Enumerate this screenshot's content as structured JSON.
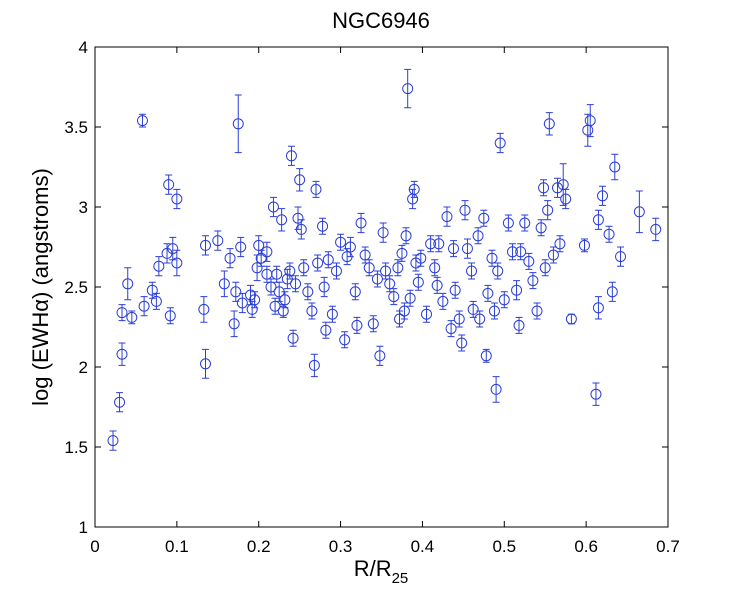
{
  "chart_data": {
    "type": "scatter",
    "title": "NGC6946",
    "xlabel": {
      "text": "R/R",
      "subscript": "25"
    },
    "ylabel": "log (EWHα) (angstroms)",
    "xlim": [
      0,
      0.7
    ],
    "xticks": [
      0,
      0.1,
      0.2,
      0.3,
      0.4,
      0.5,
      0.6,
      0.7
    ],
    "ylim": [
      1,
      4
    ],
    "yticks": [
      1,
      1.5,
      2,
      2.5,
      3,
      3.5,
      4
    ],
    "grid": false,
    "series": [
      {
        "color": "#2b3fd8",
        "x": [
          0.022,
          0.03,
          0.033,
          0.033,
          0.04,
          0.045,
          0.058,
          0.06,
          0.07,
          0.075,
          0.078,
          0.088,
          0.09,
          0.092,
          0.095,
          0.1,
          0.1,
          0.133,
          0.135,
          0.135,
          0.15,
          0.158,
          0.165,
          0.17,
          0.172,
          0.175,
          0.178,
          0.18,
          0.19,
          0.192,
          0.195,
          0.198,
          0.2,
          0.203,
          0.21,
          0.21,
          0.215,
          0.218,
          0.22,
          0.222,
          0.225,
          0.228,
          0.23,
          0.232,
          0.235,
          0.238,
          0.24,
          0.242,
          0.245,
          0.248,
          0.25,
          0.252,
          0.255,
          0.26,
          0.265,
          0.268,
          0.27,
          0.272,
          0.278,
          0.28,
          0.282,
          0.285,
          0.29,
          0.295,
          0.3,
          0.305,
          0.308,
          0.312,
          0.318,
          0.32,
          0.325,
          0.33,
          0.335,
          0.34,
          0.345,
          0.348,
          0.352,
          0.355,
          0.36,
          0.365,
          0.37,
          0.372,
          0.375,
          0.378,
          0.38,
          0.382,
          0.385,
          0.388,
          0.39,
          0.392,
          0.395,
          0.398,
          0.405,
          0.41,
          0.415,
          0.418,
          0.42,
          0.425,
          0.43,
          0.435,
          0.438,
          0.44,
          0.445,
          0.448,
          0.452,
          0.455,
          0.46,
          0.462,
          0.468,
          0.47,
          0.475,
          0.478,
          0.48,
          0.485,
          0.488,
          0.49,
          0.492,
          0.495,
          0.5,
          0.505,
          0.51,
          0.515,
          0.518,
          0.52,
          0.525,
          0.53,
          0.535,
          0.54,
          0.545,
          0.548,
          0.55,
          0.553,
          0.555,
          0.56,
          0.565,
          0.568,
          0.572,
          0.575,
          0.582,
          0.598,
          0.602,
          0.605,
          0.612,
          0.615,
          0.615,
          0.62,
          0.628,
          0.632,
          0.635,
          0.642,
          0.665,
          0.685
        ],
        "values": [
          1.54,
          1.78,
          2.08,
          2.34,
          2.52,
          2.31,
          3.54,
          2.38,
          2.48,
          2.41,
          2.63,
          2.71,
          3.14,
          2.32,
          2.74,
          3.05,
          2.65,
          2.36,
          2.76,
          2.02,
          2.79,
          2.52,
          2.68,
          2.27,
          2.47,
          3.52,
          2.75,
          2.4,
          2.45,
          2.36,
          2.42,
          2.62,
          2.76,
          2.68,
          2.58,
          2.72,
          2.5,
          3.0,
          2.38,
          2.58,
          2.47,
          2.92,
          2.35,
          2.42,
          2.55,
          2.6,
          3.32,
          2.18,
          2.52,
          2.93,
          3.17,
          2.86,
          2.62,
          2.47,
          2.35,
          2.01,
          3.11,
          2.65,
          2.88,
          2.5,
          2.23,
          2.67,
          2.33,
          2.6,
          2.78,
          2.17,
          2.69,
          2.75,
          2.47,
          2.26,
          2.9,
          2.7,
          2.62,
          2.27,
          2.55,
          2.07,
          2.84,
          2.6,
          2.52,
          2.44,
          2.62,
          2.3,
          2.71,
          2.35,
          2.82,
          3.74,
          2.43,
          3.05,
          3.11,
          2.65,
          2.53,
          2.68,
          2.33,
          2.77,
          2.62,
          2.51,
          2.77,
          2.41,
          2.94,
          2.24,
          2.74,
          2.48,
          2.3,
          2.15,
          2.98,
          2.74,
          2.6,
          2.36,
          2.82,
          2.3,
          2.93,
          2.07,
          2.46,
          2.68,
          2.35,
          1.86,
          2.6,
          3.4,
          2.42,
          2.9,
          2.72,
          2.48,
          2.26,
          2.72,
          2.9,
          2.66,
          2.54,
          2.35,
          2.87,
          3.12,
          2.62,
          2.98,
          3.52,
          2.7,
          3.12,
          2.77,
          3.14,
          3.05,
          2.3,
          2.76,
          3.48,
          3.54,
          1.83,
          2.37,
          2.92,
          3.07,
          2.83,
          2.47,
          3.25,
          2.69,
          2.97,
          2.86
        ],
        "errors": [
          0.06,
          0.06,
          0.07,
          0.05,
          0.1,
          0.04,
          0.04,
          0.06,
          0.05,
          0.05,
          0.06,
          0.06,
          0.06,
          0.05,
          0.07,
          0.06,
          0.08,
          0.08,
          0.06,
          0.09,
          0.06,
          0.08,
          0.06,
          0.08,
          0.06,
          0.18,
          0.06,
          0.06,
          0.06,
          0.05,
          0.05,
          0.08,
          0.06,
          0.05,
          0.05,
          0.06,
          0.05,
          0.06,
          0.05,
          0.05,
          0.06,
          0.07,
          0.04,
          0.05,
          0.06,
          0.05,
          0.06,
          0.05,
          0.05,
          0.07,
          0.07,
          0.06,
          0.05,
          0.05,
          0.05,
          0.07,
          0.05,
          0.05,
          0.05,
          0.06,
          0.05,
          0.05,
          0.05,
          0.05,
          0.05,
          0.05,
          0.05,
          0.06,
          0.05,
          0.05,
          0.06,
          0.05,
          0.05,
          0.05,
          0.05,
          0.06,
          0.06,
          0.05,
          0.05,
          0.05,
          0.05,
          0.05,
          0.05,
          0.05,
          0.05,
          0.12,
          0.05,
          0.06,
          0.05,
          0.05,
          0.05,
          0.05,
          0.05,
          0.05,
          0.05,
          0.05,
          0.05,
          0.05,
          0.06,
          0.05,
          0.05,
          0.05,
          0.05,
          0.05,
          0.06,
          0.06,
          0.05,
          0.05,
          0.05,
          0.05,
          0.05,
          0.04,
          0.05,
          0.05,
          0.05,
          0.08,
          0.05,
          0.06,
          0.05,
          0.05,
          0.05,
          0.06,
          0.05,
          0.05,
          0.05,
          0.05,
          0.05,
          0.05,
          0.05,
          0.05,
          0.05,
          0.06,
          0.07,
          0.05,
          0.06,
          0.05,
          0.13,
          0.06,
          0.03,
          0.04,
          0.1,
          0.1,
          0.07,
          0.07,
          0.06,
          0.06,
          0.05,
          0.06,
          0.08,
          0.06,
          0.13,
          0.07
        ]
      }
    ]
  }
}
